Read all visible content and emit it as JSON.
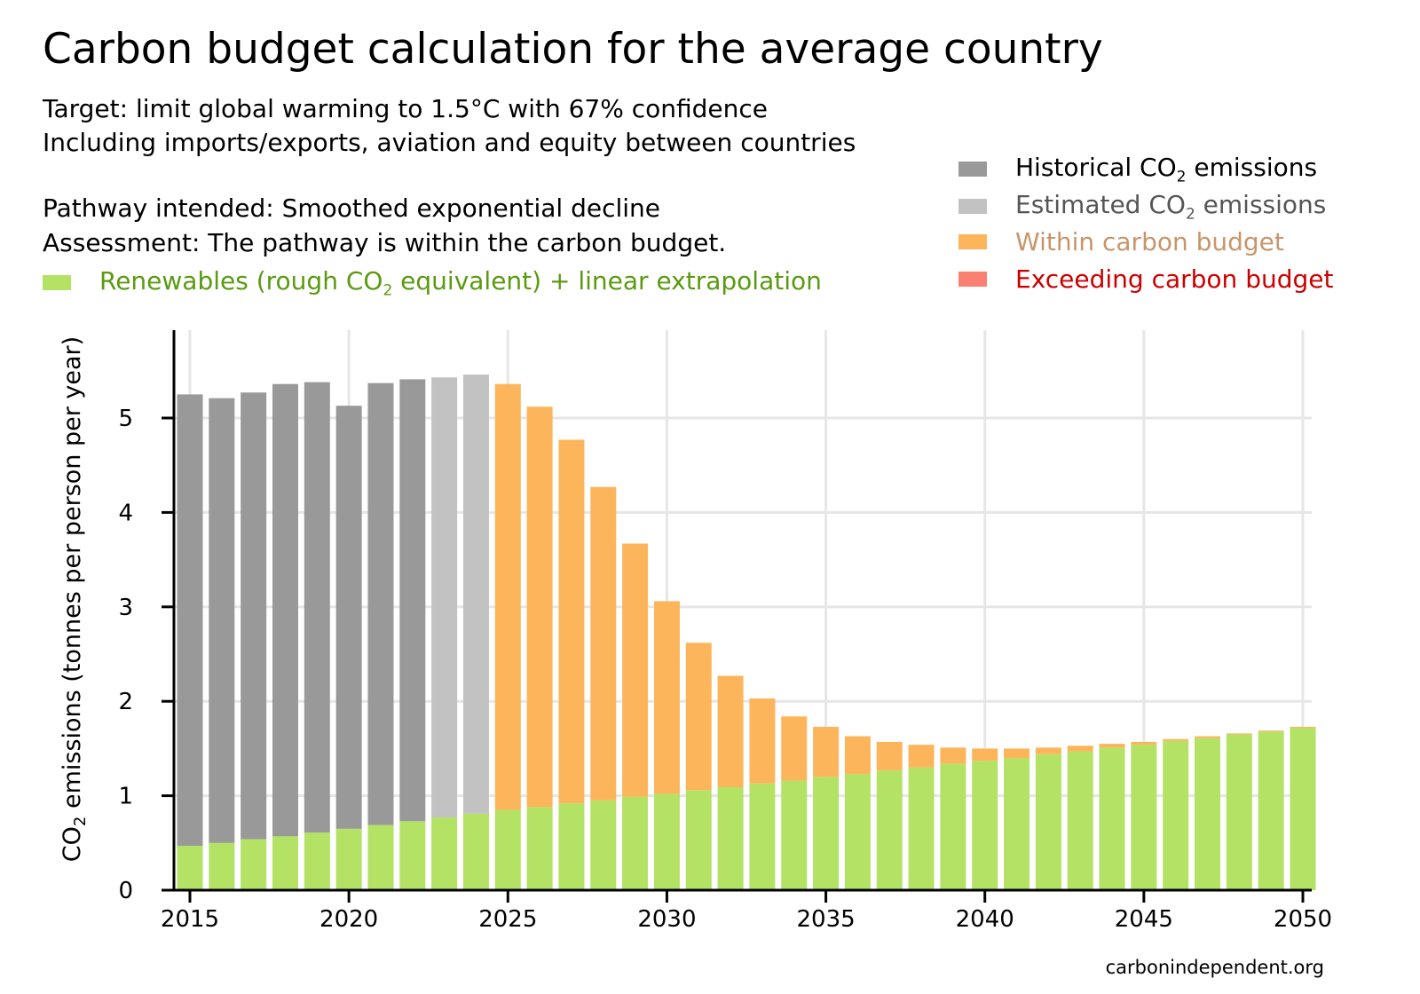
{
  "header": {
    "title": "Carbon budget calculation for the average country",
    "target": "Target: limit global warming to 1.5°C with 67% confidence",
    "including": "Including imports/exports, aviation and equity between countries",
    "pathway": "Pathway intended: Smoothed exponential decline",
    "assessment": "Assessment: The pathway is within the carbon budget."
  },
  "legend": {
    "renewables": {
      "pre": "Renewables (rough CO",
      "sub": "2",
      "post": " equivalent) + linear extrapolation",
      "color": "#b3e265",
      "text_color": "#5a9a10"
    },
    "historical": {
      "pre": "Historical CO",
      "sub": "2",
      "post": " emissions",
      "color": "#999999",
      "text_color": "#000000"
    },
    "estimated": {
      "pre": "Estimated CO",
      "sub": "2",
      "post": " emissions",
      "color": "#c2c2c2",
      "text_color": "#555555"
    },
    "within": {
      "label": "Within carbon budget",
      "color": "#fdb55c",
      "text_color": "#c8956a"
    },
    "exceeding": {
      "label": "Exceeding carbon budget",
      "color": "#fa8072",
      "text_color": "#cc0000"
    }
  },
  "credit": "carbonindependent.org",
  "chart_data": {
    "type": "bar",
    "stacked": true,
    "y_axis_label": {
      "pre": "CO",
      "sub": "2",
      "post": " emissions (tonnes per person per year)"
    },
    "ylim": [
      0,
      5.9
    ],
    "y_ticks": [
      "0",
      "1",
      "2",
      "3",
      "4",
      "5"
    ],
    "x_ticks": [
      "2015",
      "2020",
      "2025",
      "2030",
      "2035",
      "2040",
      "2045",
      "2050"
    ],
    "grid": true,
    "years": [
      2015,
      2016,
      2017,
      2018,
      2019,
      2020,
      2021,
      2022,
      2023,
      2024,
      2025,
      2026,
      2027,
      2028,
      2029,
      2030,
      2031,
      2032,
      2033,
      2034,
      2035,
      2036,
      2037,
      2038,
      2039,
      2040,
      2041,
      2042,
      2043,
      2044,
      2045,
      2046,
      2047,
      2048,
      2049,
      2050
    ],
    "series": [
      {
        "name": "Renewables (rough CO2 equivalent) + linear extrapolation",
        "color": "#b3e265",
        "values": [
          0.47,
          0.5,
          0.54,
          0.57,
          0.61,
          0.65,
          0.69,
          0.73,
          0.77,
          0.81,
          0.85,
          0.88,
          0.92,
          0.95,
          0.99,
          1.02,
          1.06,
          1.09,
          1.13,
          1.16,
          1.2,
          1.23,
          1.27,
          1.3,
          1.34,
          1.37,
          1.4,
          1.44,
          1.47,
          1.51,
          1.54,
          1.58,
          1.61,
          1.65,
          1.68,
          1.72
        ]
      },
      {
        "name": "Historical CO2 emissions",
        "color": "#999999",
        "values": [
          4.78,
          4.71,
          4.73,
          4.79,
          4.77,
          4.48,
          4.68,
          4.68,
          0,
          0,
          0,
          0,
          0,
          0,
          0,
          0,
          0,
          0,
          0,
          0,
          0,
          0,
          0,
          0,
          0,
          0,
          0,
          0,
          0,
          0,
          0,
          0,
          0,
          0,
          0,
          0
        ]
      },
      {
        "name": "Estimated CO2 emissions",
        "color": "#c2c2c2",
        "values": [
          0,
          0,
          0,
          0,
          0,
          0,
          0,
          0,
          4.66,
          4.65,
          0,
          0,
          0,
          0,
          0,
          0,
          0,
          0,
          0,
          0,
          0,
          0,
          0,
          0,
          0,
          0,
          0,
          0,
          0,
          0,
          0,
          0,
          0,
          0,
          0,
          0
        ]
      },
      {
        "name": "Within carbon budget",
        "color": "#fdb55c",
        "values": [
          0,
          0,
          0,
          0,
          0,
          0,
          0,
          0,
          0,
          0,
          4.51,
          4.24,
          3.85,
          3.32,
          2.68,
          2.04,
          1.56,
          1.18,
          0.9,
          0.68,
          0.53,
          0.4,
          0.3,
          0.24,
          0.17,
          0.13,
          0.1,
          0.07,
          0.06,
          0.04,
          0.03,
          0.02,
          0.02,
          0.01,
          0.01,
          0.01
        ]
      },
      {
        "name": "Exceeding carbon budget",
        "color": "#fa8072",
        "values": [
          0,
          0,
          0,
          0,
          0,
          0,
          0,
          0,
          0,
          0,
          0,
          0,
          0,
          0,
          0,
          0,
          0,
          0,
          0,
          0,
          0,
          0,
          0,
          0,
          0,
          0,
          0,
          0,
          0,
          0,
          0,
          0,
          0,
          0,
          0,
          0
        ]
      }
    ]
  }
}
